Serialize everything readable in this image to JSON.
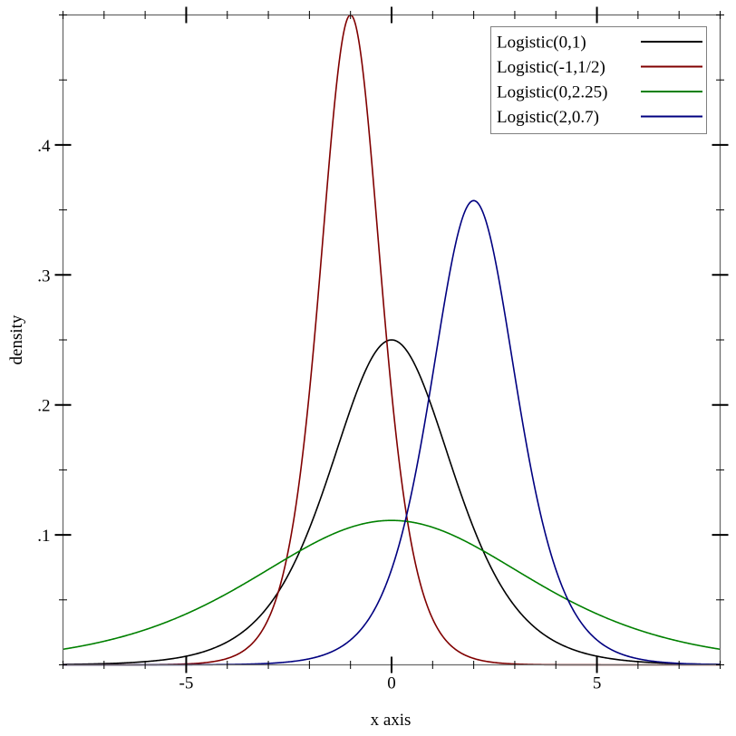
{
  "chart_data": {
    "type": "line",
    "title": "",
    "xlabel": "x axis",
    "ylabel": "density",
    "xlim": [
      -8,
      8
    ],
    "ylim": [
      0,
      0.5
    ],
    "grid": false,
    "legend_position": "top-right",
    "x_major_ticks": [
      -5,
      0,
      5
    ],
    "x_tick_labels": [
      "-5",
      "0",
      "5"
    ],
    "x_minor_step": 1,
    "y_major_ticks": [
      0.1,
      0.2,
      0.3,
      0.4
    ],
    "y_tick_labels": [
      ".1",
      ".2",
      ".3",
      ".4"
    ],
    "y_minor_step": 0.05,
    "series": [
      {
        "name": "Logistic(0,1)",
        "distribution": "logistic",
        "location": 0,
        "scale": 1,
        "peak": 0.25,
        "color": "#000000"
      },
      {
        "name": "Logistic(-1,1/2)",
        "distribution": "logistic",
        "location": -1,
        "scale": 0.5,
        "peak": 0.5,
        "color": "#800000"
      },
      {
        "name": "Logistic(0,2.25)",
        "distribution": "logistic",
        "location": 0,
        "scale": 2.25,
        "peak": 0.111,
        "color": "#008000"
      },
      {
        "name": "Logistic(2,0.7)",
        "distribution": "logistic",
        "location": 2,
        "scale": 0.7,
        "peak": 0.357,
        "color": "#000080"
      }
    ]
  }
}
